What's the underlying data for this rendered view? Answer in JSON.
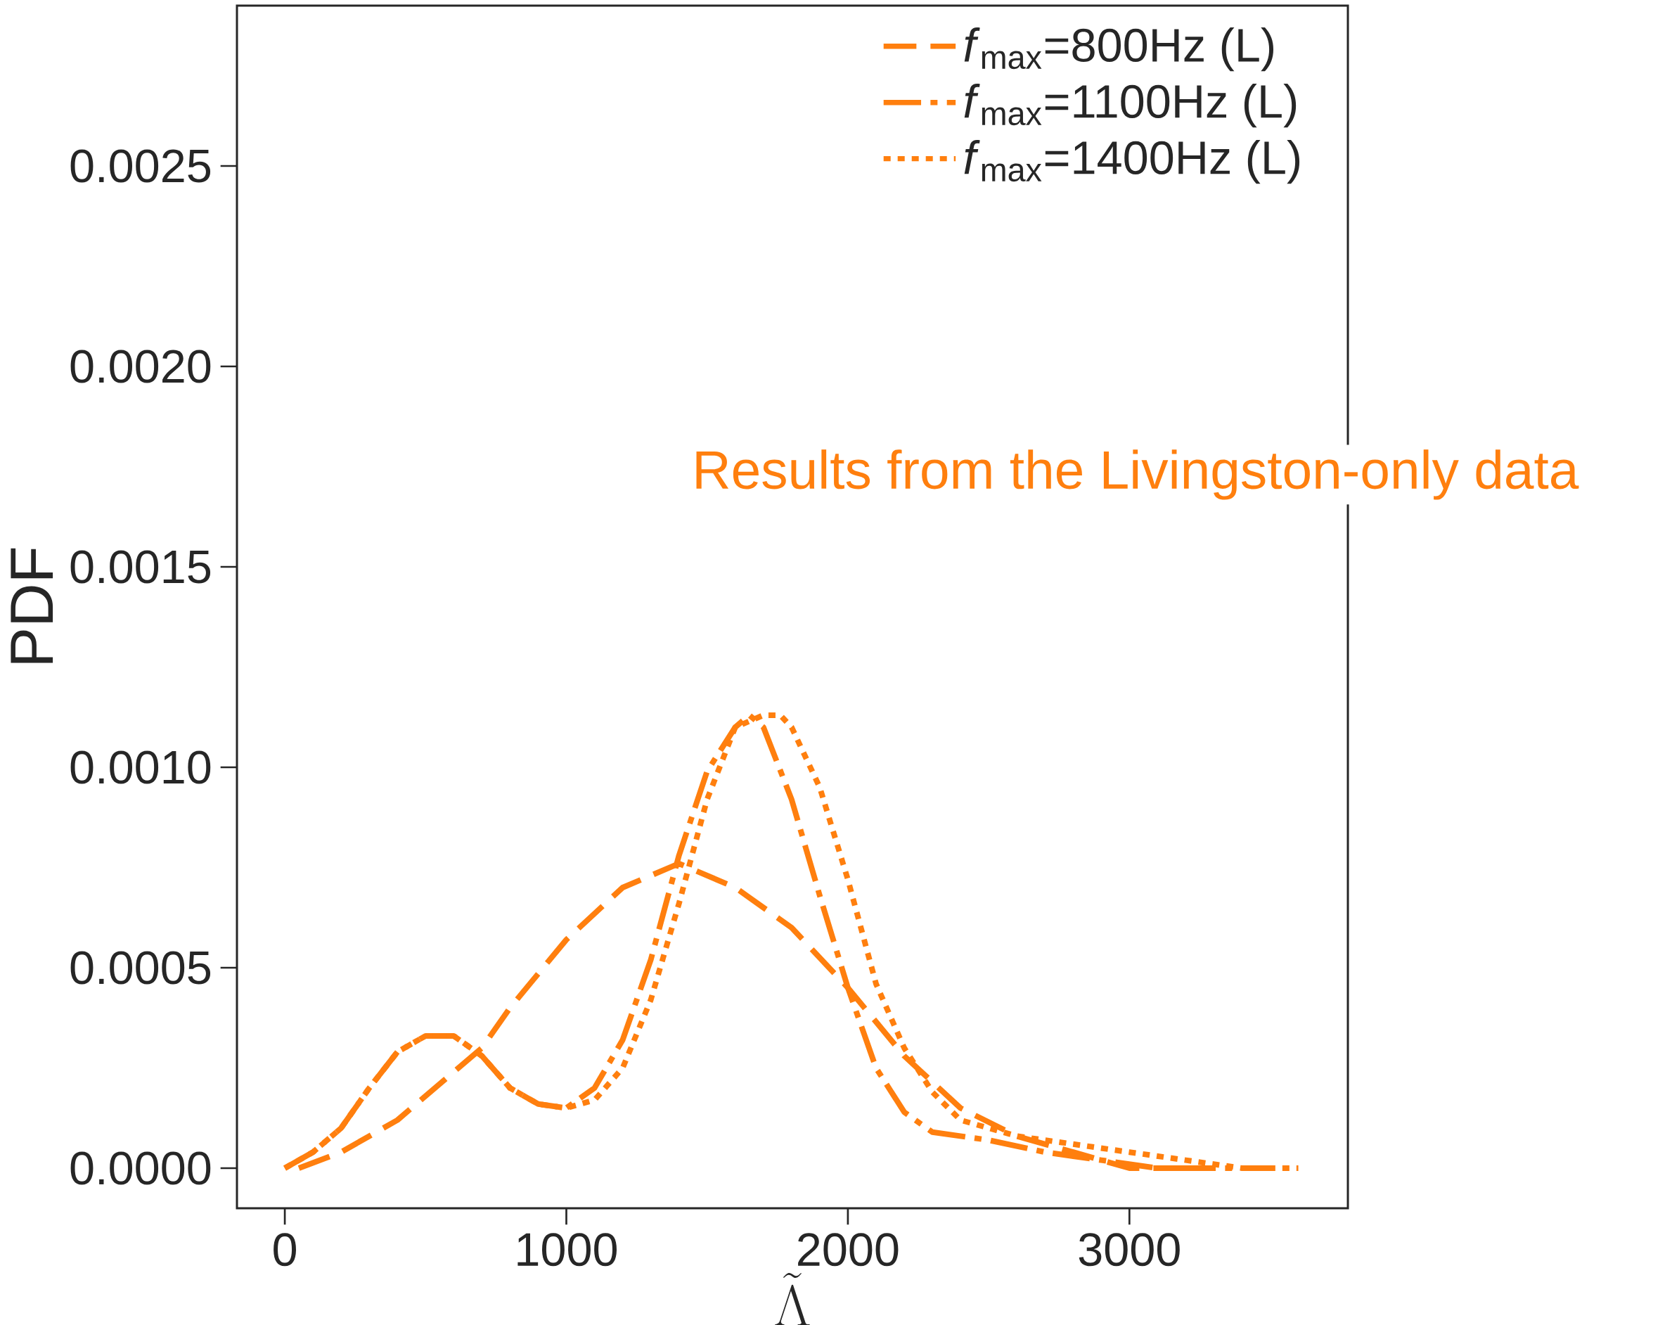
{
  "chart_data": {
    "type": "line",
    "xlabel": "\\tilde{\\Lambda}",
    "ylabel": "PDF",
    "xlim": [
      -170,
      3776
    ],
    "ylim": [
      -0.0001,
      0.0029
    ],
    "xticks": [
      0,
      1000,
      2000,
      3000
    ],
    "yticks": [
      {
        "value": 0,
        "label": "0.0000"
      },
      {
        "value": 0.0005,
        "label": "0.0005"
      },
      {
        "value": 0.001,
        "label": "0.0010"
      },
      {
        "value": 0.0015,
        "label": "0.0015"
      },
      {
        "value": 0.002,
        "label": "0.0020"
      },
      {
        "value": 0.0025,
        "label": "0.0025"
      }
    ],
    "grid": false,
    "legend": "top right",
    "marker": "none",
    "annotations": [
      "Results from the Livingston-only data"
    ],
    "series": [
      {
        "name": "*f*$_{max}$=800Hz (L)",
        "color": "#ff7f0e",
        "line_style": "dashed",
        "x": [
          50,
          200,
          400,
          600,
          700,
          800,
          1000,
          1200,
          1400,
          1600,
          1800,
          2000,
          2200,
          2400,
          2600,
          2800,
          3000,
          3200
        ],
        "values": [
          0,
          4e-05,
          0.00012,
          0.00024,
          0.0003,
          0.0004,
          0.00057,
          0.0007,
          0.00076,
          0.0007,
          0.0006,
          0.00045,
          0.00028,
          0.00015,
          8e-05,
          4e-05,
          0,
          0
        ]
      },
      {
        "name": "*f*$_{max}$=1100Hz (L)",
        "color": "#ff7f0e",
        "line_style": "dashdot",
        "x": [
          0,
          100,
          200,
          300,
          400,
          500,
          600,
          700,
          800,
          900,
          1000,
          1100,
          1200,
          1300,
          1400,
          1500,
          1600,
          1650,
          1700,
          1800,
          1900,
          2000,
          2100,
          2200,
          2300,
          2500,
          2700,
          2900,
          3100,
          3300,
          3500
        ],
        "values": [
          0,
          4e-05,
          0.0001,
          0.0002,
          0.00029,
          0.00033,
          0.00033,
          0.00028,
          0.0002,
          0.00016,
          0.00015,
          0.0002,
          0.00032,
          0.00052,
          0.00078,
          0.00099,
          0.0011,
          0.00113,
          0.0011,
          0.00092,
          0.00068,
          0.00045,
          0.00025,
          0.00014,
          9e-05,
          7e-05,
          4e-05,
          2e-05,
          0,
          0,
          0
        ]
      },
      {
        "name": "*f*$_{max}$=1400Hz (L)",
        "color": "#ff7f0e",
        "line_style": "dotted",
        "x": [
          0,
          100,
          200,
          300,
          400,
          500,
          600,
          700,
          800,
          900,
          1000,
          1100,
          1200,
          1300,
          1400,
          1500,
          1600,
          1700,
          1760,
          1800,
          1900,
          2000,
          2100,
          2200,
          2300,
          2400,
          2600,
          2800,
          3000,
          3200,
          3400,
          3600
        ],
        "values": [
          0,
          4e-05,
          0.0001,
          0.0002,
          0.00029,
          0.00033,
          0.00033,
          0.00028,
          0.0002,
          0.00016,
          0.00015,
          0.00017,
          0.00025,
          0.00042,
          0.00066,
          0.00092,
          0.0011,
          0.00113,
          0.00113,
          0.0011,
          0.00095,
          0.00072,
          0.00046,
          0.0003,
          0.00019,
          0.00012,
          8e-05,
          6e-05,
          4e-05,
          2e-05,
          0,
          0
        ]
      }
    ]
  }
}
